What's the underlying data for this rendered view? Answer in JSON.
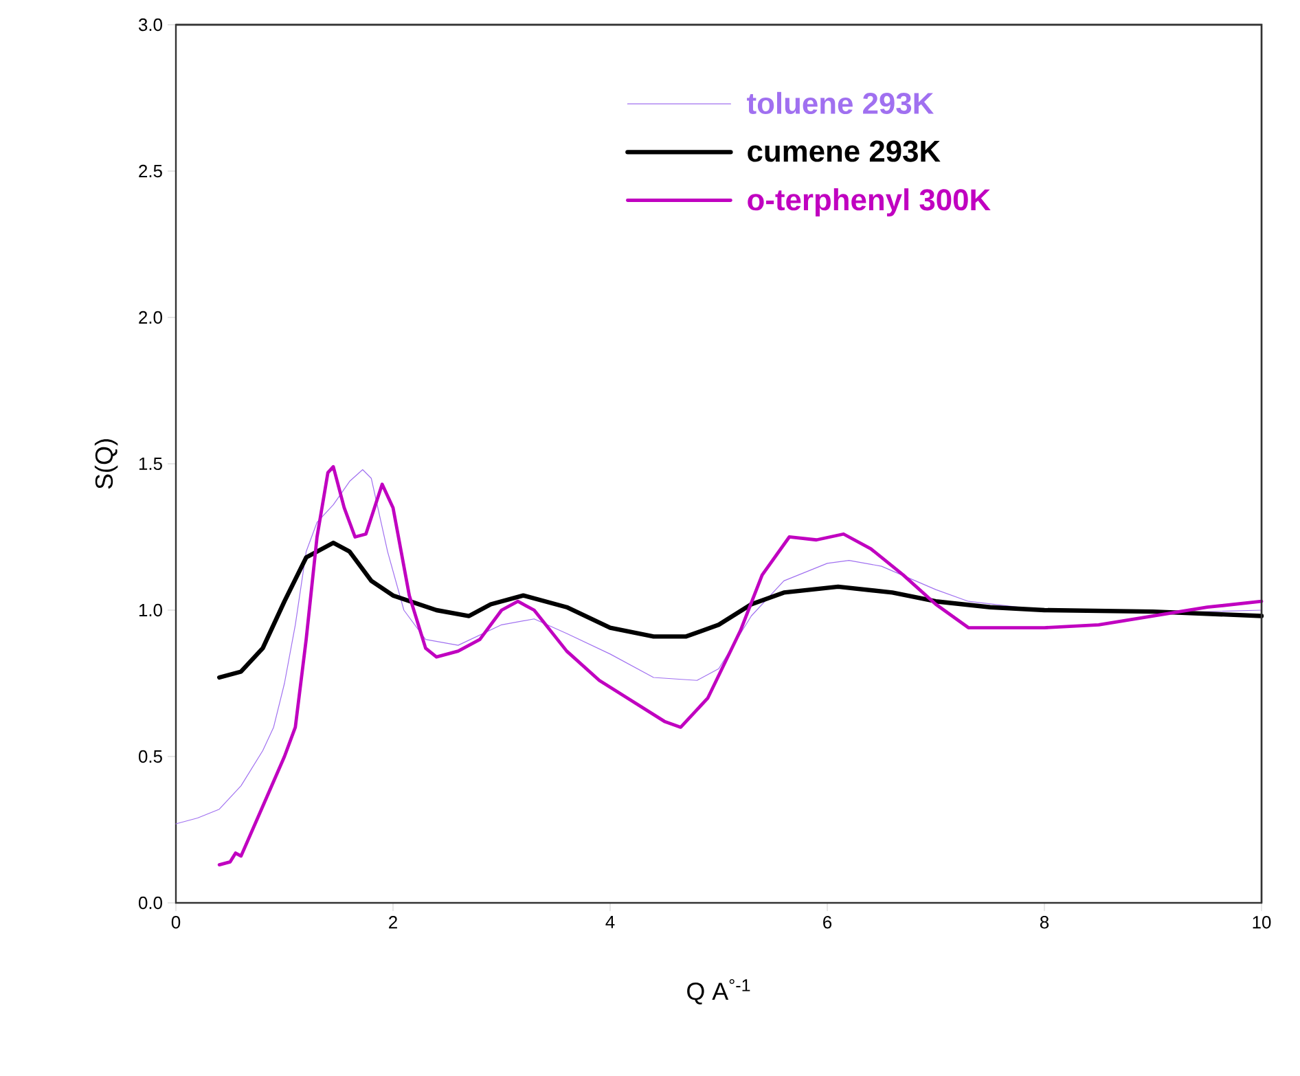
{
  "chart_data": {
    "type": "line",
    "xlabel": "Q A$^{°-1}$",
    "ylabel": "S(Q)",
    "xlim": [
      0,
      10
    ],
    "xticks": [
      0,
      2,
      4,
      6,
      8,
      10
    ],
    "ylim": [
      0,
      3
    ],
    "yticks": [
      {
        "value": 0,
        "label": "0.0"
      },
      {
        "value": 0.5,
        "label": "0.5"
      },
      {
        "value": 1,
        "label": "1.0"
      },
      {
        "value": 1.5,
        "label": "1.5"
      },
      {
        "value": 2,
        "label": "2.0"
      },
      {
        "value": 2.5,
        "label": "2.5"
      },
      {
        "value": 3,
        "label": "3.0"
      }
    ],
    "grid": false,
    "legend": "top right",
    "marker": "none",
    "line_style": "solid",
    "series": [
      {
        "name": "toluene 293K",
        "color": "#a070f0",
        "x": [
          0,
          0.2,
          0.4,
          0.6,
          0.8,
          0.9,
          1.0,
          1.1,
          1.2,
          1.3,
          1.45,
          1.6,
          1.72,
          1.8,
          1.95,
          2.1,
          2.3,
          2.6,
          3.0,
          3.3,
          3.6,
          4.0,
          4.4,
          4.8,
          5.0,
          5.3,
          5.6,
          6.0,
          6.2,
          6.5,
          7.0,
          7.3,
          8.0,
          9.0,
          10.0
        ],
        "values": [
          0.27,
          0.29,
          0.32,
          0.4,
          0.52,
          0.6,
          0.75,
          0.95,
          1.2,
          1.3,
          1.36,
          1.44,
          1.48,
          1.45,
          1.2,
          1.0,
          0.9,
          0.88,
          0.95,
          0.97,
          0.92,
          0.85,
          0.77,
          0.76,
          0.8,
          0.98,
          1.1,
          1.16,
          1.17,
          1.15,
          1.07,
          1.03,
          1.0,
          0.99,
          1.0
        ]
      },
      {
        "name": "cumene 293K",
        "color": "#000000",
        "x": [
          0.4,
          0.6,
          0.8,
          1.0,
          1.2,
          1.45,
          1.6,
          1.8,
          2.0,
          2.4,
          2.7,
          2.9,
          3.2,
          3.6,
          4.0,
          4.4,
          4.7,
          5.0,
          5.3,
          5.6,
          6.1,
          6.6,
          7.0,
          7.5,
          8.0,
          9.0,
          10.0
        ],
        "values": [
          0.77,
          0.79,
          0.87,
          1.03,
          1.18,
          1.23,
          1.2,
          1.1,
          1.05,
          1.0,
          0.98,
          1.02,
          1.05,
          1.01,
          0.94,
          0.91,
          0.91,
          0.95,
          1.02,
          1.06,
          1.08,
          1.06,
          1.03,
          1.01,
          1.0,
          0.995,
          0.98
        ]
      },
      {
        "name": "o-terphenyl 300K",
        "color": "#c000c0",
        "x": [
          0.4,
          0.5,
          0.55,
          0.6,
          0.8,
          1.0,
          1.1,
          1.2,
          1.3,
          1.4,
          1.45,
          1.55,
          1.65,
          1.75,
          1.9,
          2.0,
          2.15,
          2.3,
          2.4,
          2.6,
          2.8,
          3.0,
          3.15,
          3.3,
          3.6,
          3.9,
          4.2,
          4.5,
          4.65,
          4.9,
          5.2,
          5.4,
          5.65,
          5.9,
          6.15,
          6.4,
          6.7,
          7.0,
          7.3,
          8.0,
          8.5,
          9.0,
          9.5,
          10.0
        ],
        "values": [
          0.13,
          0.14,
          0.17,
          0.16,
          0.33,
          0.5,
          0.6,
          0.9,
          1.25,
          1.47,
          1.49,
          1.35,
          1.25,
          1.26,
          1.43,
          1.35,
          1.05,
          0.87,
          0.84,
          0.86,
          0.9,
          1.0,
          1.03,
          1.0,
          0.86,
          0.76,
          0.69,
          0.62,
          0.6,
          0.7,
          0.93,
          1.12,
          1.25,
          1.24,
          1.26,
          1.21,
          1.12,
          1.02,
          0.94,
          0.94,
          0.95,
          0.98,
          1.01,
          1.03
        ]
      }
    ]
  }
}
